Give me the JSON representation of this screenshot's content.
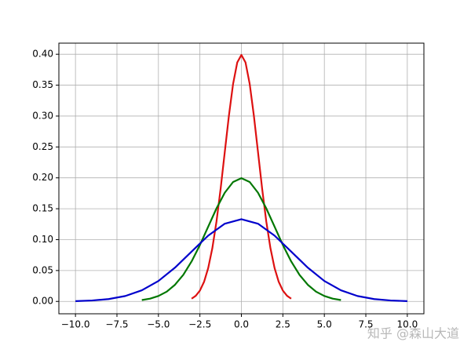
{
  "chart_data": {
    "type": "line",
    "watermark": "知乎 @森山大道",
    "xlim": [
      -11,
      11
    ],
    "ylim": [
      -0.02,
      0.418
    ],
    "xticks": [
      {
        "value": -10,
        "label": "−10.0"
      },
      {
        "value": -7.5,
        "label": "−7.5"
      },
      {
        "value": -5,
        "label": "−5.0"
      },
      {
        "value": -2.5,
        "label": "−2.5"
      },
      {
        "value": 0,
        "label": "0.0"
      },
      {
        "value": 2.5,
        "label": "2.5"
      },
      {
        "value": 5,
        "label": "5.0"
      },
      {
        "value": 7.5,
        "label": "7.5"
      },
      {
        "value": 10,
        "label": "10.0"
      }
    ],
    "yticks": [
      {
        "value": 0,
        "label": "0.00"
      },
      {
        "value": 0.05,
        "label": "0.05"
      },
      {
        "value": 0.1,
        "label": "0.10"
      },
      {
        "value": 0.15,
        "label": "0.15"
      },
      {
        "value": 0.2,
        "label": "0.20"
      },
      {
        "value": 0.25,
        "label": "0.25"
      },
      {
        "value": 0.3,
        "label": "0.30"
      },
      {
        "value": 0.35,
        "label": "0.35"
      },
      {
        "value": 0.4,
        "label": "0.40"
      }
    ],
    "grid": true,
    "series": [
      {
        "color": "#dd1111",
        "x": [
          -3,
          -2.75,
          -2.5,
          -2.25,
          -2,
          -1.75,
          -1.5,
          -1.25,
          -1,
          -0.75,
          -0.5,
          -0.25,
          0,
          0.25,
          0.5,
          0.75,
          1,
          1.25,
          1.5,
          1.75,
          2,
          2.25,
          2.5,
          2.75,
          3
        ],
        "values": [
          0.0044,
          0.0091,
          0.0175,
          0.0317,
          0.054,
          0.0863,
          0.1295,
          0.1826,
          0.242,
          0.3011,
          0.3521,
          0.3867,
          0.3989,
          0.3867,
          0.3521,
          0.3011,
          0.242,
          0.1826,
          0.1295,
          0.0863,
          0.054,
          0.0317,
          0.0175,
          0.0091,
          0.0044
        ]
      },
      {
        "color": "#007700",
        "x": [
          -6,
          -5.5,
          -5,
          -4.5,
          -4,
          -3.5,
          -3,
          -2.5,
          -2,
          -1.5,
          -1,
          -0.5,
          0,
          0.5,
          1,
          1.5,
          2,
          2.5,
          3,
          3.5,
          4,
          4.5,
          5,
          5.5,
          6
        ],
        "values": [
          0.0022,
          0.0045,
          0.0088,
          0.0158,
          0.027,
          0.0431,
          0.0648,
          0.0913,
          0.121,
          0.1506,
          0.176,
          0.1933,
          0.1995,
          0.1933,
          0.176,
          0.1506,
          0.121,
          0.0913,
          0.0648,
          0.0431,
          0.027,
          0.0158,
          0.0088,
          0.0045,
          0.0022
        ]
      },
      {
        "color": "#0000cc",
        "x": [
          -10,
          -9,
          -8,
          -7,
          -6,
          -5,
          -4,
          -3,
          -2,
          -1,
          0,
          1,
          2,
          3,
          4,
          5,
          6,
          7,
          8,
          9,
          10
        ],
        "values": [
          0.0005,
          0.0015,
          0.0038,
          0.0087,
          0.018,
          0.0331,
          0.0547,
          0.0807,
          0.1065,
          0.1258,
          0.133,
          0.1258,
          0.1065,
          0.0807,
          0.0547,
          0.0331,
          0.018,
          0.0087,
          0.0038,
          0.0015,
          0.0005
        ]
      }
    ]
  }
}
